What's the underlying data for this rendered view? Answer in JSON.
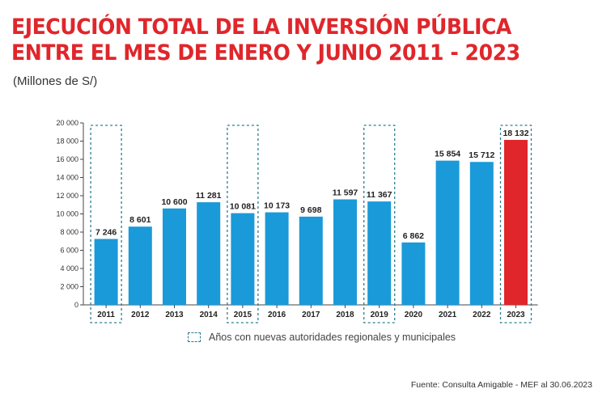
{
  "title_line1": "EJECUCIÓN TOTAL DE LA INVERSIÓN PÚBLICA",
  "title_line2": "ENTRE EL MES DE ENERO Y JUNIO 2011 - 2023",
  "subtitle": "(Millones de S/)",
  "legend_text": "Años con nuevas autoridades regionales y municipales",
  "source": "Fuente: Consulta Amigable -  MEF al 30.06.2023",
  "colors": {
    "bar": "#1a9ad8",
    "highlight": "#e0262b",
    "dashed_box": "#2a7f8f",
    "title": "#e0262b"
  },
  "chart_data": {
    "type": "bar",
    "categories": [
      "2011",
      "2012",
      "2013",
      "2014",
      "2015",
      "2016",
      "2017",
      "2018",
      "2019",
      "2020",
      "2021",
      "2022",
      "2023"
    ],
    "values": [
      7246,
      8601,
      10600,
      11281,
      10081,
      10173,
      9698,
      11597,
      11367,
      6862,
      15854,
      15712,
      18132
    ],
    "value_labels": [
      "7 246",
      "8 601",
      "10 600",
      "11 281",
      "10 081",
      "10 173",
      "9 698",
      "11 597",
      "11 367",
      "6 862",
      "15 854",
      "15 712",
      "18 132"
    ],
    "highlighted_categories": [
      "2011",
      "2015",
      "2019",
      "2023"
    ],
    "red_category": "2023",
    "ylim": [
      0,
      20000
    ],
    "yticks": [
      0,
      2000,
      4000,
      6000,
      8000,
      10000,
      12000,
      14000,
      16000,
      18000,
      20000
    ],
    "ytick_labels": [
      "0",
      "2 000",
      "4 000",
      "6 000",
      "8 000",
      "10 000",
      "12 000",
      "14 000",
      "16 000",
      "18 000",
      "20 000"
    ],
    "grid": false,
    "legend": "bottom"
  }
}
